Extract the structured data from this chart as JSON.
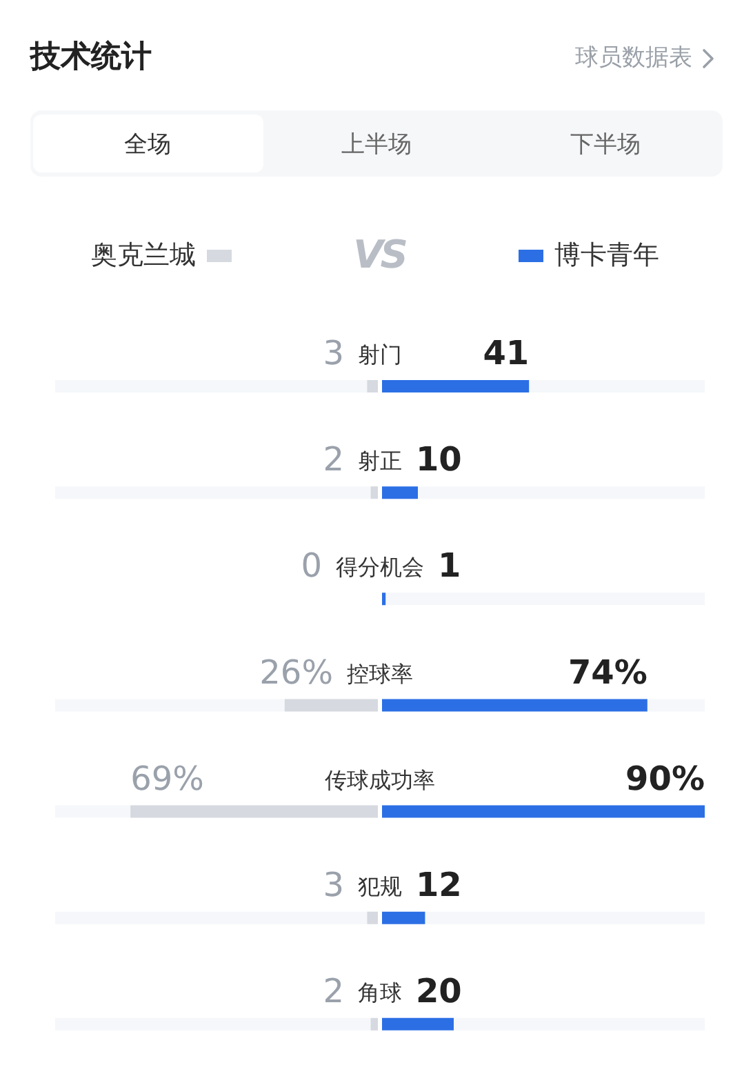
{
  "chart_data": [
    {
      "type": "bar",
      "orientation": "horizontal",
      "title": "技术统计",
      "annotations": [
        "球员数据表",
        "全场",
        "上半场",
        "下半场",
        "VS"
      ],
      "categories": [
        "射门",
        "射正",
        "得分机会",
        "控球率",
        "传球成功率",
        "犯规",
        "角球"
      ],
      "series": [
        {
          "name": "奥克兰城",
          "color": "#d6dae0",
          "values": [
            3,
            2,
            0,
            26,
            69,
            3,
            2
          ],
          "value_labels": [
            "3",
            "2",
            "0",
            "26%",
            "69%",
            "3",
            "2"
          ]
        }
      ],
      "xlim": [
        90,
        0
      ],
      "legend": "top",
      "tick_labels": false
    },
    {
      "type": "bar",
      "orientation": "horizontal",
      "categories": [
        "射门",
        "射正",
        "得分机会",
        "控球率",
        "传球成功率",
        "犯规",
        "角球"
      ],
      "series": [
        {
          "name": "博卡青年",
          "color": "#2c6fe5",
          "values": [
            41,
            10,
            1,
            74,
            90,
            12,
            20
          ],
          "value_labels": [
            "41",
            "10",
            "1",
            "74%",
            "90%",
            "12",
            "20"
          ]
        }
      ],
      "xlim": [
        0,
        90
      ],
      "legend": "top",
      "tick_labels": "y"
    }
  ]
}
